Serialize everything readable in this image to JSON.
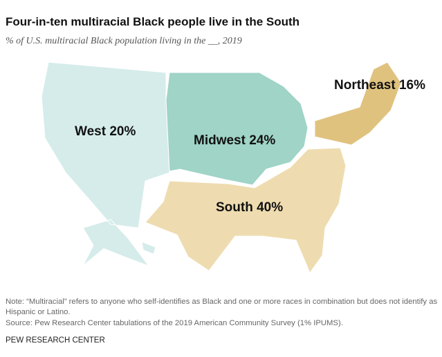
{
  "chart_data": {
    "type": "choropleth",
    "title": "Four-in-ten multiracial Black people live in the South",
    "subtitle": "% of U.S. multiracial Black population living in the __, 2019",
    "categories": [
      "West",
      "Midwest",
      "Northeast",
      "South"
    ],
    "values": [
      20,
      24,
      16,
      40
    ],
    "value_labels": [
      "20%",
      "24%",
      "16%",
      "40%"
    ],
    "colors": [
      "#d5ecea",
      "#9fd4c6",
      "#e0c27f",
      "#eedcb0"
    ]
  },
  "footer": {
    "note": "Note: “Multiracial” refers to anyone who self-identifies as Black and one or more races in combination but does not identify as Hispanic or Latino.",
    "source": "Source: Pew Research Center tabulations of the 2019 American Community Survey (1% IPUMS).",
    "credit": "PEW RESEARCH CENTER"
  }
}
